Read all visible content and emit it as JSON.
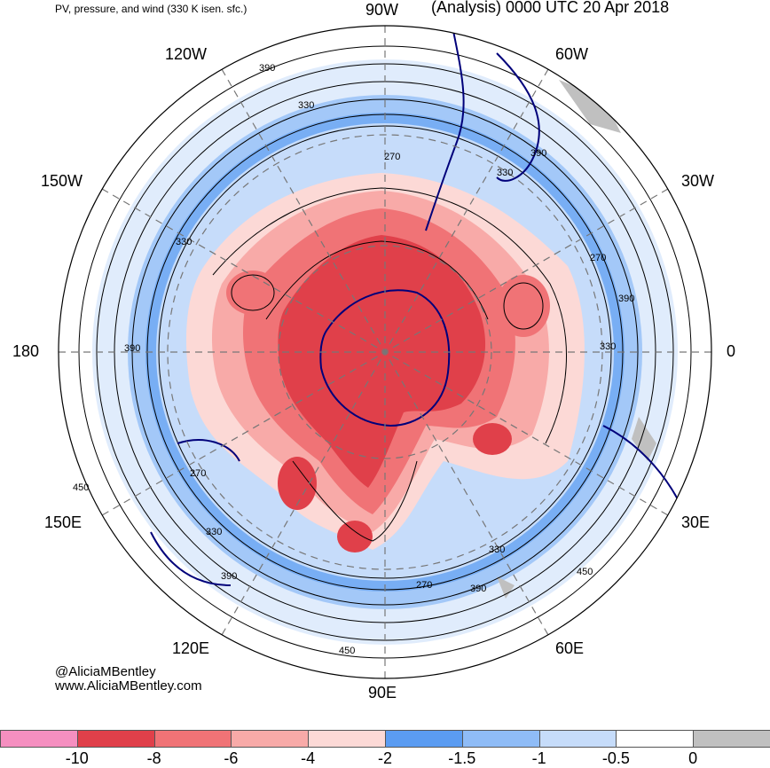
{
  "title_left": "PV, pressure, and wind (330 K isen. sfc.)",
  "title_right": "(Analysis) 0000 UTC 20 Apr 2018",
  "lon_labels": {
    "w90": "90W",
    "w60": "60W",
    "w120": "120W",
    "w30": "30W",
    "w150": "150W",
    "e180": "180",
    "e0": "0",
    "e150": "150E",
    "e30": "30E",
    "e120": "120E",
    "e60": "60E",
    "e90": "90E"
  },
  "contour_labels": [
    "390",
    "330",
    "270",
    "390",
    "330",
    "270",
    "390",
    "330",
    "390",
    "330",
    "450",
    "270",
    "330",
    "390",
    "270",
    "330",
    "390",
    "450",
    "450"
  ],
  "credit": {
    "handle": "@AliciaMBentley",
    "url": "www.AliciaMBentley.com"
  },
  "colorbar": {
    "colors": [
      "#f58fc0",
      "#e0404a",
      "#f07376",
      "#f8aaa8",
      "#fcd9d6",
      "#5b9cf2",
      "#8fbcf7",
      "#c6dcfa",
      "#ffffff",
      "#c0c0c0"
    ],
    "ticks": [
      "-10",
      "-8",
      "-6",
      "-4",
      "-2",
      "-1.5",
      "-1",
      "-0.5",
      "0"
    ]
  },
  "map_colors": {
    "land": "#00007a",
    "contour": "#000000",
    "grid": "#777777"
  }
}
